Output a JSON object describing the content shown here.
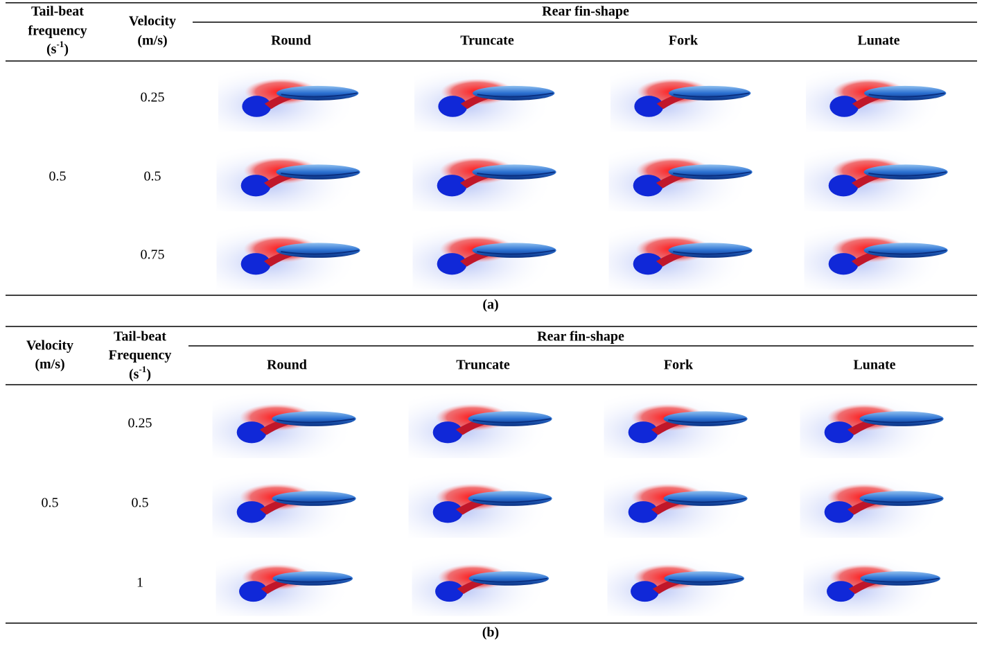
{
  "panels": [
    {
      "caption": "(a)",
      "group_header": "Rear fin-shape",
      "row_headers": [
        {
          "lines": [
            "Tail-beat",
            "frequency"
          ],
          "unit": {
            "base": "(s",
            "sup": "-1",
            "close": ")"
          }
        },
        {
          "lines": [
            "Velocity",
            "(m/s)"
          ]
        }
      ],
      "columns": [
        "Round",
        "Truncate",
        "Fork",
        "Lunate"
      ],
      "group_value": "0.5",
      "rows": [
        "0.25",
        "0.5",
        "0.75"
      ]
    },
    {
      "caption": "(b)",
      "group_header": "Rear fin-shape",
      "row_headers": [
        {
          "lines": [
            "Velocity",
            "(m/s)"
          ]
        },
        {
          "lines": [
            "Tail-beat",
            "Frequency"
          ],
          "unit": {
            "base": "(s",
            "sup": "-1",
            "close": ")"
          }
        }
      ],
      "columns": [
        "Round",
        "Truncate",
        "Fork",
        "Lunate"
      ],
      "group_value": "0.5",
      "rows": [
        "0.25",
        "0.5",
        "1"
      ]
    }
  ]
}
